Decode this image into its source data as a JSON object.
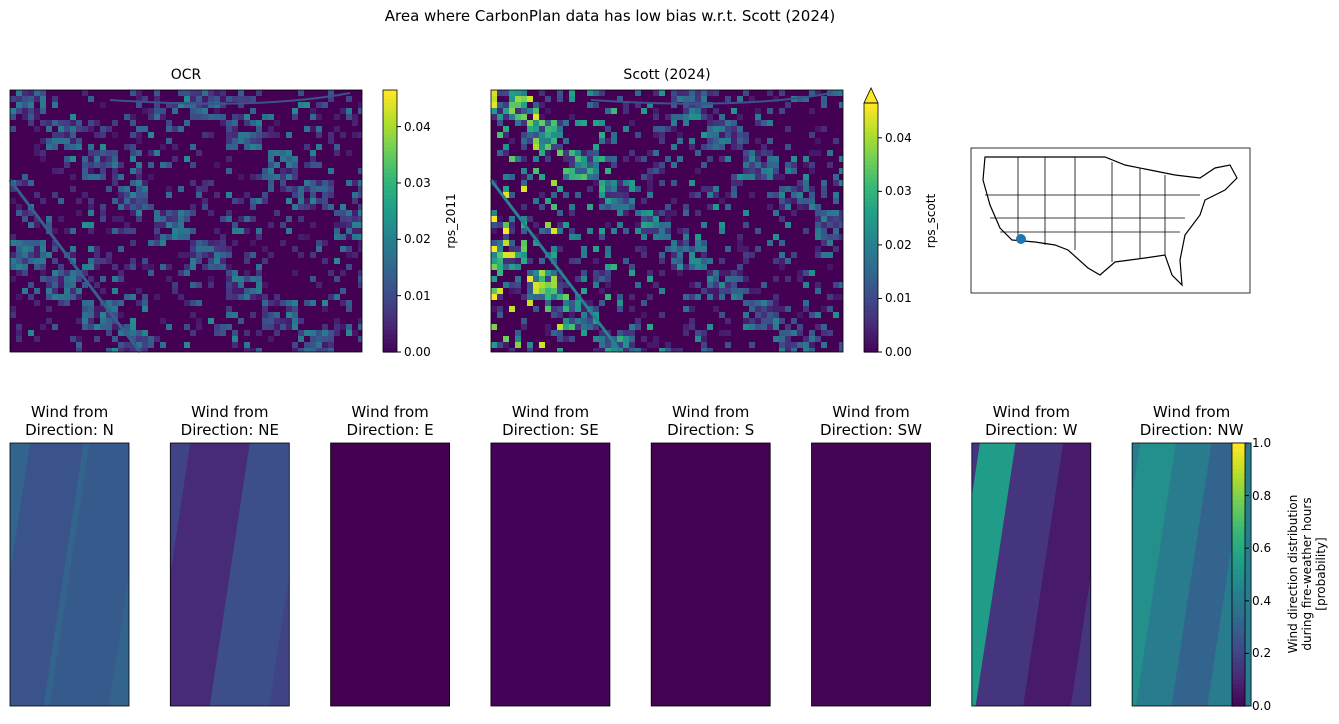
{
  "title": "Area where CarbonPlan data has low bias w.r.t. Scott (2024)",
  "maps": [
    {
      "title": "OCR",
      "colorbar": {
        "label": "rps_2011",
        "lim": [
          0,
          0.0465
        ],
        "ticks": [
          {
            "value": 0,
            "label": "0.00"
          },
          0.01,
          0.02,
          0.03,
          0.04
        ]
      }
    },
    {
      "title": "Scott (2024)",
      "colorbar": {
        "label": "rps_scott",
        "lim": [
          0,
          0.0465
        ],
        "extend": "max",
        "ticks": [
          {
            "value": 0,
            "label": "0.00"
          },
          0.01,
          0.02,
          0.03,
          0.04
        ]
      }
    }
  ],
  "wind": {
    "panels": [
      "Wind from\nDirection: N",
      "Wind from\nDirection: NE",
      "Wind from\nDirection: E",
      "Wind from\nDirection: SE",
      "Wind from\nDirection: S",
      "Wind from\nDirection: SW",
      "Wind from\nDirection: W",
      "Wind from\nDirection: NW"
    ],
    "colorbar": {
      "label": "Wind direction distribution\nduring fire-weather hours\n[probability]",
      "lim": [
        0,
        1
      ],
      "ticks": [
        {
          "value": 0,
          "label": "0.0"
        },
        0.2,
        0.4,
        0.6,
        0.8,
        {
          "value": 1,
          "label": "1.0"
        }
      ]
    }
  }
}
